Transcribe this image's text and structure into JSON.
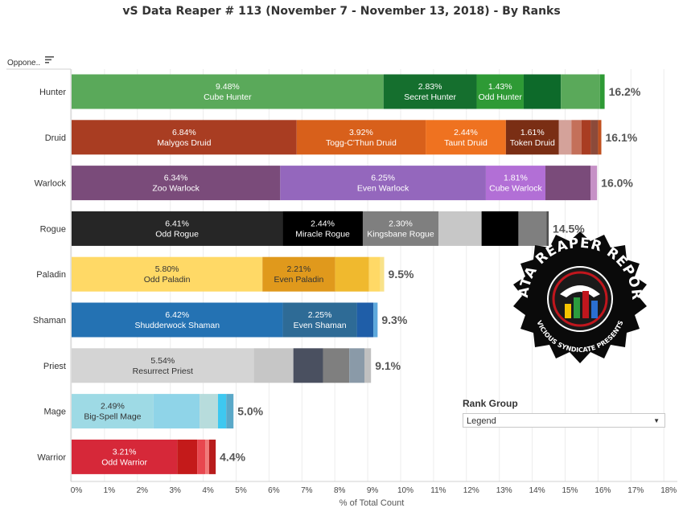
{
  "title": "vS Data Reaper #  113 (November 7 - November 13, 2018) - By Ranks",
  "opponent_header": "Oppone..",
  "rank_group": {
    "label": "Rank Group",
    "selected": "Legend"
  },
  "logo": {
    "text_top": "DATA REAPER REPORT",
    "text_bottom": "VICIOUS SYNDICATE PRESENTS"
  },
  "colors": {
    "Hunter": [
      "#5aa95a",
      "#156f2e",
      "#2e9a35",
      "#0d6a2a",
      "#5aa95a",
      "#2e9a35"
    ],
    "Druid": [
      "#a93d22",
      "#d8601b",
      "#ef7220",
      "#7a2e14",
      "#d4a29a",
      "#c4705a",
      "#a93d22",
      "#8c4a3a",
      "#c0501e"
    ],
    "Warlock": [
      "#7a4b7a",
      "#9467bd",
      "#b26fd6",
      "#7a4b7a",
      "#c691c6"
    ],
    "Rogue": [
      "#262626",
      "#000000",
      "#7f7f7f",
      "#c7c7c7",
      "#000000",
      "#7f7f7f",
      "#4f4f4f"
    ],
    "Paladin": [
      "#ffd966",
      "#e0991c",
      "#f0b92e",
      "#ffd966",
      "#f8e28a"
    ],
    "Shaman": [
      "#2472b3",
      "#2e6b96",
      "#1f5ea8",
      "#5da8dc"
    ],
    "Priest": [
      "#d4d4d4",
      "#c6c6c6",
      "#4a5060",
      "#7f7f7f",
      "#8a9aa8",
      "#c0c0c0"
    ],
    "Mage": [
      "#9edae5",
      "#8fd4e8",
      "#b7dcdc",
      "#3ec8f0",
      "#5aa8c8"
    ],
    "Warrior": [
      "#d62839",
      "#c41a1a",
      "#e8474f",
      "#f07a7a",
      "#b81c1c"
    ]
  },
  "chart_data": {
    "type": "bar",
    "orientation": "horizontal",
    "stacked": true,
    "title": "vS Data Reaper #  113 (November 7 - November 13, 2018) - By Ranks",
    "xlabel": "% of Total Count",
    "ylabel": "Oppone..",
    "xlim": [
      0,
      18
    ],
    "xticks": [
      0,
      1,
      2,
      3,
      4,
      5,
      6,
      7,
      8,
      9,
      10,
      11,
      12,
      13,
      14,
      15,
      16,
      17,
      18
    ],
    "tick_suffix": "%",
    "rows": [
      {
        "class": "Hunter",
        "total": "16.2%",
        "segments": [
          {
            "value": 9.48,
            "label": "Cube Hunter"
          },
          {
            "value": 2.83,
            "label": "Secret Hunter"
          },
          {
            "value": 1.43,
            "label": "Odd Hunter"
          },
          {
            "value": 1.13,
            "label": ""
          },
          {
            "value": 1.19,
            "label": ""
          },
          {
            "value": 0.14,
            "label": ""
          }
        ]
      },
      {
        "class": "Druid",
        "total": "16.1%",
        "segments": [
          {
            "value": 6.84,
            "label": "Malygos Druid"
          },
          {
            "value": 3.92,
            "label": "Togg-C'Thun Druid"
          },
          {
            "value": 2.44,
            "label": "Taunt Druid"
          },
          {
            "value": 1.61,
            "label": "Token Druid"
          },
          {
            "value": 0.38,
            "label": ""
          },
          {
            "value": 0.31,
            "label": ""
          },
          {
            "value": 0.28,
            "label": ""
          },
          {
            "value": 0.22,
            "label": ""
          },
          {
            "value": 0.1,
            "label": ""
          }
        ]
      },
      {
        "class": "Warlock",
        "total": "16.0%",
        "segments": [
          {
            "value": 6.34,
            "label": "Zoo Warlock"
          },
          {
            "value": 6.25,
            "label": "Even Warlock"
          },
          {
            "value": 1.81,
            "label": "Cube Warlock"
          },
          {
            "value": 1.37,
            "label": ""
          },
          {
            "value": 0.2,
            "label": ""
          }
        ]
      },
      {
        "class": "Rogue",
        "total": "14.5%",
        "segments": [
          {
            "value": 6.41,
            "label": "Odd Rogue"
          },
          {
            "value": 2.44,
            "label": "Miracle Rogue"
          },
          {
            "value": 2.3,
            "label": "Kingsbane Rogue"
          },
          {
            "value": 1.31,
            "label": ""
          },
          {
            "value": 1.12,
            "label": ""
          },
          {
            "value": 0.85,
            "label": ""
          },
          {
            "value": 0.07,
            "label": ""
          }
        ]
      },
      {
        "class": "Paladin",
        "total": "9.5%",
        "segments": [
          {
            "value": 5.8,
            "label": "Odd Paladin"
          },
          {
            "value": 2.21,
            "label": "Even Paladin"
          },
          {
            "value": 1.03,
            "label": ""
          },
          {
            "value": 0.34,
            "label": ""
          },
          {
            "value": 0.12,
            "label": ""
          }
        ]
      },
      {
        "class": "Shaman",
        "total": "9.3%",
        "segments": [
          {
            "value": 6.42,
            "label": "Shudderwock Shaman"
          },
          {
            "value": 2.25,
            "label": "Even Shaman"
          },
          {
            "value": 0.5,
            "label": ""
          },
          {
            "value": 0.13,
            "label": ""
          }
        ]
      },
      {
        "class": "Priest",
        "total": "9.1%",
        "segments": [
          {
            "value": 5.54,
            "label": "Resurrect Priest"
          },
          {
            "value": 1.2,
            "label": ""
          },
          {
            "value": 0.9,
            "label": ""
          },
          {
            "value": 0.8,
            "label": ""
          },
          {
            "value": 0.46,
            "label": ""
          },
          {
            "value": 0.2,
            "label": ""
          }
        ]
      },
      {
        "class": "Mage",
        "total": "5.0%",
        "segments": [
          {
            "value": 2.49,
            "label": "Big-Spell Mage"
          },
          {
            "value": 1.4,
            "label": ""
          },
          {
            "value": 0.56,
            "label": ""
          },
          {
            "value": 0.25,
            "label": ""
          },
          {
            "value": 0.22,
            "label": ""
          }
        ]
      },
      {
        "class": "Warrior",
        "total": "4.4%",
        "segments": [
          {
            "value": 3.21,
            "label": "Odd Warrior"
          },
          {
            "value": 0.61,
            "label": ""
          },
          {
            "value": 0.24,
            "label": ""
          },
          {
            "value": 0.12,
            "label": ""
          },
          {
            "value": 0.2,
            "label": ""
          }
        ]
      }
    ]
  }
}
